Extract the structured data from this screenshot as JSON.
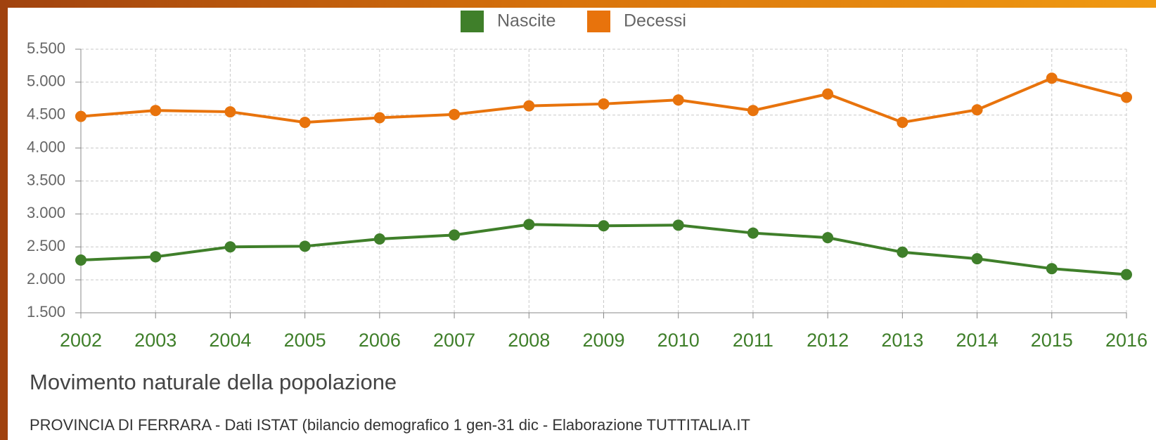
{
  "chart_data": {
    "type": "line",
    "title": "Movimento naturale della popolazione",
    "subtitle": "PROVINCIA DI FERRARA - Dati ISTAT (bilancio demografico 1 gen-31 dic - Elaborazione TUTTITALIA.IT",
    "categories": [
      "2002",
      "2003",
      "2004",
      "2005",
      "2006",
      "2007",
      "2008",
      "2009",
      "2010",
      "2011",
      "2012",
      "2013",
      "2014",
      "2015",
      "2016"
    ],
    "series": [
      {
        "name": "Nascite",
        "color": "#3f7f2a",
        "values": [
          2300,
          2350,
          2500,
          2510,
          2620,
          2680,
          2840,
          2820,
          2830,
          2710,
          2640,
          2420,
          2320,
          2170,
          2080
        ]
      },
      {
        "name": "Decessi",
        "color": "#e8730c",
        "values": [
          4480,
          4570,
          4550,
          4390,
          4460,
          4510,
          4640,
          4670,
          4730,
          4570,
          4820,
          4390,
          4580,
          5060,
          4770
        ]
      }
    ],
    "ylim": [
      1500,
      5500
    ],
    "yticks": [
      {
        "value": 1500,
        "label": "1.500"
      },
      {
        "value": 2000,
        "label": "2.000"
      },
      {
        "value": 2500,
        "label": "2.500"
      },
      {
        "value": 3000,
        "label": "3.000"
      },
      {
        "value": 3500,
        "label": "3.500"
      },
      {
        "value": 4000,
        "label": "4.000"
      },
      {
        "value": 4500,
        "label": "4.500"
      },
      {
        "value": 5000,
        "label": "5.000"
      },
      {
        "value": 5500,
        "label": "5.500"
      }
    ],
    "grid": true,
    "legend": "top"
  }
}
